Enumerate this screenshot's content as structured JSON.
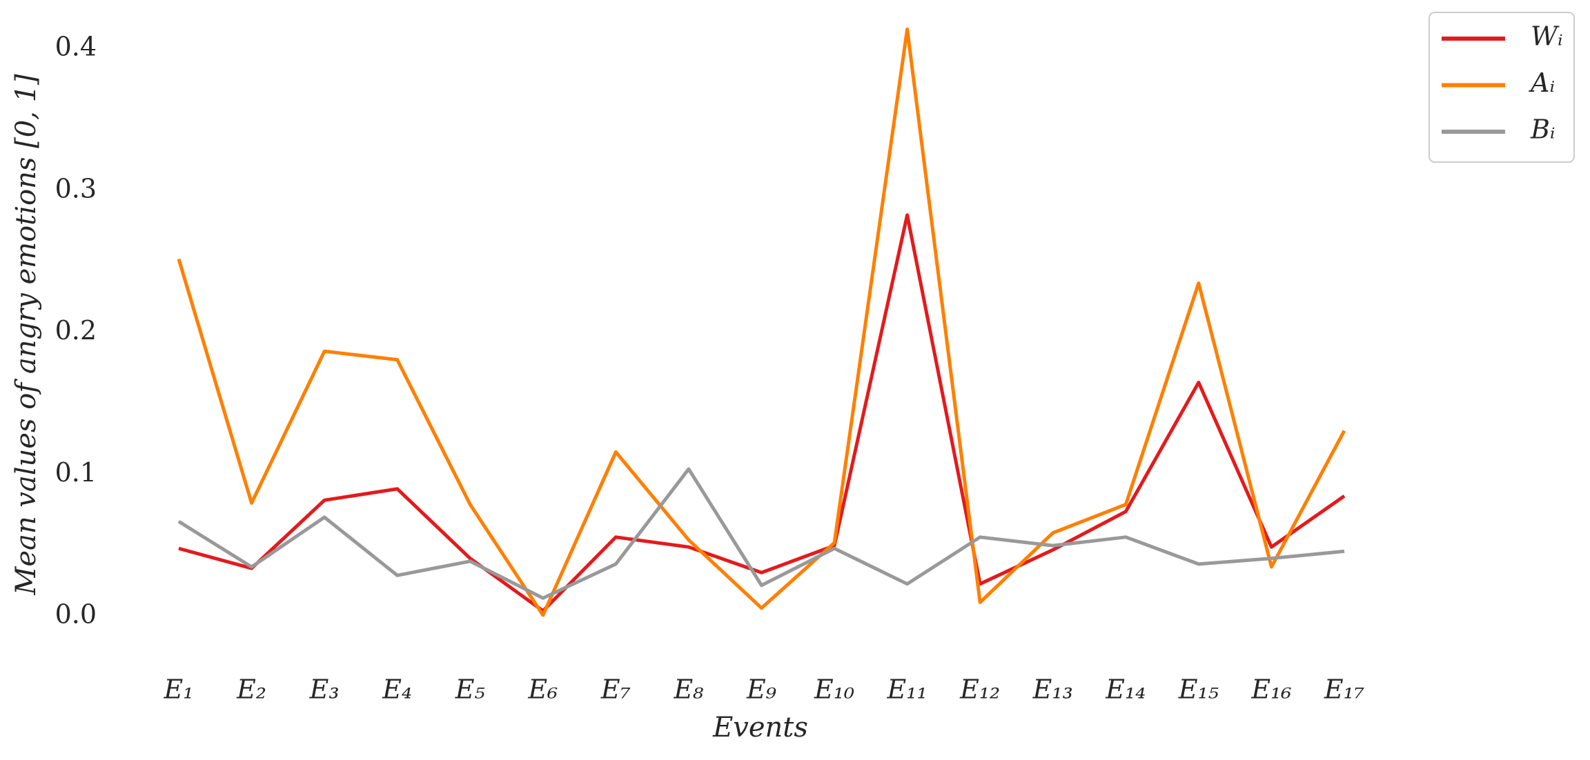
{
  "chart_data": {
    "type": "line",
    "xlabel": "Events",
    "ylabel": "Mean values of angry emotions [0, 1]",
    "categories": [
      "E₁",
      "E₂",
      "E₃",
      "E₄",
      "E₅",
      "E₆",
      "E₇",
      "E₈",
      "E₉",
      "E₁₀",
      "E₁₁",
      "E₁₂",
      "E₁₃",
      "E₁₄",
      "E₁₅",
      "E₁₆",
      "E₁₇"
    ],
    "series": [
      {
        "name": "Wᵢ",
        "color": "#e41a1c",
        "values": [
          0.048,
          0.034,
          0.082,
          0.09,
          0.041,
          0.004,
          0.056,
          0.049,
          0.031,
          0.05,
          0.283,
          0.023,
          0.047,
          0.074,
          0.165,
          0.049,
          0.085
        ]
      },
      {
        "name": "Aᵢ",
        "color": "#ff7f00",
        "values": [
          0.252,
          0.08,
          0.187,
          0.181,
          0.079,
          0.001,
          0.116,
          0.054,
          0.006,
          0.052,
          0.414,
          0.01,
          0.059,
          0.079,
          0.235,
          0.035,
          0.131
        ]
      },
      {
        "name": "Bᵢ",
        "color": "#999999",
        "values": [
          0.067,
          0.035,
          0.07,
          0.029,
          0.039,
          0.013,
          0.037,
          0.104,
          0.022,
          0.048,
          0.023,
          0.056,
          0.05,
          0.056,
          0.037,
          0.041,
          0.046
        ]
      }
    ],
    "ylim": [
      -0.035,
      0.42
    ],
    "yticks": [
      {
        "value": 0,
        "label": "0.0"
      },
      0.1,
      0.2,
      0.3,
      0.4
    ],
    "legend": "outside upper right"
  }
}
